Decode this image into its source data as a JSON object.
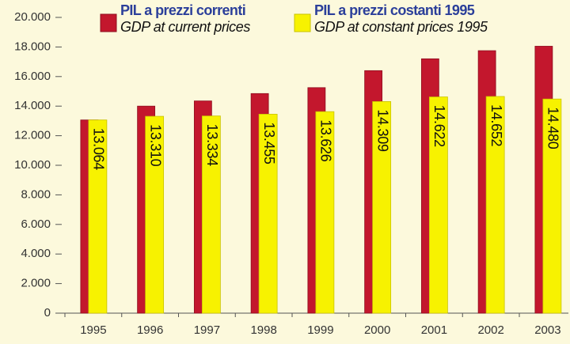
{
  "chart_data": {
    "type": "bar",
    "categories": [
      "1995",
      "1996",
      "1997",
      "1998",
      "1999",
      "2000",
      "2001",
      "2002",
      "2003"
    ],
    "series": [
      {
        "name": "PIL a prezzi correnti",
        "subname": "GDP at current prices",
        "color": "#c3172d",
        "values": [
          13064,
          14000,
          14350,
          14850,
          15250,
          16400,
          17200,
          17750,
          18050
        ]
      },
      {
        "name": "PIL a prezzi costanti 1995",
        "subname": "GDP at constant prices 1995",
        "color": "#f7f200",
        "values": [
          13064,
          13310,
          13334,
          13455,
          13626,
          14309,
          14622,
          14652,
          14480
        ],
        "value_labels": [
          "13.064",
          "13.310",
          "13.334",
          "13.455",
          "13.626",
          "14.309",
          "14.622",
          "14.652",
          "14.480"
        ]
      }
    ],
    "ylim": [
      0,
      20000
    ],
    "yticks": [
      0,
      {
        "value": 2000,
        "label": "2.000"
      },
      {
        "value": 4000,
        "label": "4.000"
      },
      {
        "value": 6000,
        "label": "6.000"
      },
      {
        "value": 8000,
        "label": "8.000"
      },
      {
        "value": 10000,
        "label": "10.000"
      },
      {
        "value": 12000,
        "label": "12.000"
      },
      {
        "value": 14000,
        "label": "14.000"
      },
      {
        "value": 16000,
        "label": "16.000"
      },
      {
        "value": 18000,
        "label": "18.000"
      },
      {
        "value": 20000,
        "label": "20.000"
      }
    ]
  }
}
